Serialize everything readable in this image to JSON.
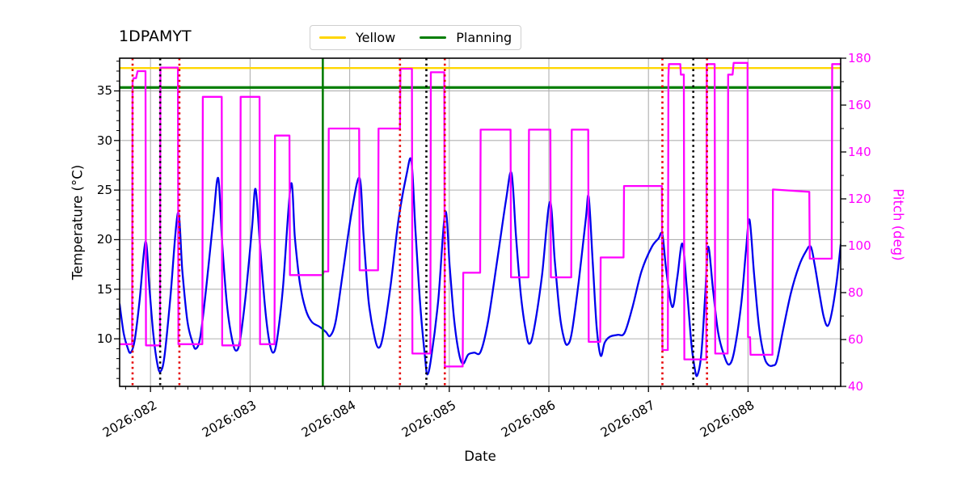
{
  "chart_data": {
    "type": "line",
    "title": "1DPAMYT",
    "xlabel": "Date",
    "ylabel_left": "Temperature (°C)",
    "ylabel_right": "Pitch (deg)",
    "grid": true,
    "xlim": [
      81.69,
      88.93
    ],
    "ylim_left": [
      5.2,
      38.3
    ],
    "ylim_right": [
      40,
      180
    ],
    "x_ticks": [
      {
        "day": 82,
        "label": "2026:082"
      },
      {
        "day": 83,
        "label": "2026:083"
      },
      {
        "day": 84,
        "label": "2026:084"
      },
      {
        "day": 85,
        "label": "2026:085"
      },
      {
        "day": 86,
        "label": "2026:086"
      },
      {
        "day": 87,
        "label": "2026:087"
      },
      {
        "day": 88,
        "label": "2026:088"
      }
    ],
    "x_minor_tick_step_days": 0.125,
    "y_ticks_left": [
      10,
      15,
      20,
      25,
      30,
      35
    ],
    "y_ticks_right": [
      40,
      60,
      80,
      100,
      120,
      140,
      160,
      180
    ],
    "legend": [
      {
        "label": "Yellow",
        "color": "#ffd600"
      },
      {
        "label": "Planning",
        "color": "#007d00"
      }
    ],
    "hlines": [
      {
        "name": "yellow-limit",
        "axis": "right",
        "value": 175.8,
        "color": "#ffd600",
        "width": 2.4
      },
      {
        "name": "planning-limit",
        "axis": "right",
        "value": 167.5,
        "color": "#007d00",
        "width": 3.2
      }
    ],
    "vlines": [
      {
        "day": 83.73,
        "color": "#007d00",
        "style": "solid",
        "width": 2.6
      },
      {
        "day": 81.82,
        "color": "#e60000",
        "style": "dotted",
        "width": 2.6
      },
      {
        "day": 82.29,
        "color": "#e60000",
        "style": "dotted",
        "width": 2.6
      },
      {
        "day": 84.505,
        "color": "#e60000",
        "style": "dotted",
        "width": 2.6
      },
      {
        "day": 84.955,
        "color": "#e60000",
        "style": "dotted",
        "width": 2.6
      },
      {
        "day": 87.14,
        "color": "#e60000",
        "style": "dotted",
        "width": 2.6
      },
      {
        "day": 87.588,
        "color": "#e60000",
        "style": "dotted",
        "width": 2.6
      },
      {
        "day": 82.097,
        "color": "#000000",
        "style": "dotted",
        "width": 2.6
      },
      {
        "day": 84.77,
        "color": "#000000",
        "style": "dotted",
        "width": 2.6
      },
      {
        "day": 87.45,
        "color": "#000000",
        "style": "dotted",
        "width": 2.6
      }
    ],
    "series": [
      {
        "name": "temperature",
        "axis": "left",
        "color": "#0000ee",
        "width": 2.3,
        "smooth": true,
        "points": [
          [
            81.69,
            13.5
          ],
          [
            81.73,
            10.6
          ],
          [
            81.77,
            9.1
          ],
          [
            81.8,
            8.6
          ],
          [
            81.84,
            9.8
          ],
          [
            81.89,
            13.8
          ],
          [
            81.95,
            19.8
          ],
          [
            81.99,
            15.0
          ],
          [
            82.03,
            10.3
          ],
          [
            82.07,
            7.4
          ],
          [
            82.1,
            6.7
          ],
          [
            82.14,
            8.2
          ],
          [
            82.2,
            14.2
          ],
          [
            82.275,
            22.7
          ],
          [
            82.32,
            16.8
          ],
          [
            82.37,
            11.8
          ],
          [
            82.42,
            9.7
          ],
          [
            82.455,
            9.0
          ],
          [
            82.5,
            10.2
          ],
          [
            82.56,
            15.2
          ],
          [
            82.63,
            22.0
          ],
          [
            82.68,
            26.2
          ],
          [
            82.72,
            19.6
          ],
          [
            82.77,
            13.2
          ],
          [
            82.82,
            9.9
          ],
          [
            82.86,
            8.8
          ],
          [
            82.9,
            9.9
          ],
          [
            82.96,
            14.8
          ],
          [
            83.02,
            21.3
          ],
          [
            83.055,
            25.1
          ],
          [
            83.1,
            19.4
          ],
          [
            83.15,
            13.2
          ],
          [
            83.19,
            9.9
          ],
          [
            83.23,
            8.6
          ],
          [
            83.27,
            9.9
          ],
          [
            83.33,
            15.2
          ],
          [
            83.41,
            25.6
          ],
          [
            83.45,
            20.2
          ],
          [
            83.5,
            15.6
          ],
          [
            83.56,
            12.9
          ],
          [
            83.62,
            11.7
          ],
          [
            83.7,
            11.2
          ],
          [
            83.76,
            10.7
          ],
          [
            83.805,
            10.3
          ],
          [
            83.86,
            11.8
          ],
          [
            83.93,
            16.6
          ],
          [
            84.02,
            22.8
          ],
          [
            84.1,
            26.2
          ],
          [
            84.14,
            20.3
          ],
          [
            84.19,
            13.8
          ],
          [
            84.245,
            10.4
          ],
          [
            84.29,
            9.1
          ],
          [
            84.335,
            10.3
          ],
          [
            84.41,
            15.3
          ],
          [
            84.49,
            22.0
          ],
          [
            84.57,
            26.5
          ],
          [
            84.62,
            27.9
          ],
          [
            84.66,
            21.0
          ],
          [
            84.71,
            13.2
          ],
          [
            84.755,
            8.3
          ],
          [
            84.78,
            6.4
          ],
          [
            84.82,
            8.2
          ],
          [
            84.89,
            14.0
          ],
          [
            84.96,
            22.8
          ],
          [
            85.005,
            17.2
          ],
          [
            85.05,
            11.8
          ],
          [
            85.1,
            8.4
          ],
          [
            85.14,
            7.5
          ],
          [
            85.19,
            8.4
          ],
          [
            85.25,
            8.6
          ],
          [
            85.315,
            8.7
          ],
          [
            85.39,
            11.8
          ],
          [
            85.48,
            17.8
          ],
          [
            85.57,
            24.0
          ],
          [
            85.625,
            26.7
          ],
          [
            85.67,
            20.3
          ],
          [
            85.72,
            14.3
          ],
          [
            85.77,
            10.7
          ],
          [
            85.805,
            9.5
          ],
          [
            85.85,
            10.9
          ],
          [
            85.93,
            16.3
          ],
          [
            86.01,
            23.8
          ],
          [
            86.06,
            17.8
          ],
          [
            86.11,
            12.4
          ],
          [
            86.15,
            10.1
          ],
          [
            86.185,
            9.4
          ],
          [
            86.23,
            10.6
          ],
          [
            86.3,
            15.8
          ],
          [
            86.37,
            22.0
          ],
          [
            86.4,
            24.3
          ],
          [
            86.44,
            17.8
          ],
          [
            86.48,
            11.2
          ],
          [
            86.52,
            8.3
          ],
          [
            86.56,
            9.6
          ],
          [
            86.61,
            10.2
          ],
          [
            86.69,
            10.4
          ],
          [
            86.76,
            10.6
          ],
          [
            86.84,
            13.2
          ],
          [
            86.93,
            16.8
          ],
          [
            87.03,
            19.2
          ],
          [
            87.1,
            20.1
          ],
          [
            87.14,
            20.5
          ],
          [
            87.18,
            16.8
          ],
          [
            87.24,
            13.2
          ],
          [
            87.29,
            16.2
          ],
          [
            87.34,
            19.6
          ],
          [
            87.385,
            15.2
          ],
          [
            87.43,
            9.6
          ],
          [
            87.465,
            7.0
          ],
          [
            87.49,
            6.3
          ],
          [
            87.53,
            8.4
          ],
          [
            87.57,
            14.4
          ],
          [
            87.6,
            19.3
          ],
          [
            87.65,
            14.8
          ],
          [
            87.7,
            10.6
          ],
          [
            87.76,
            8.3
          ],
          [
            87.81,
            7.4
          ],
          [
            87.86,
            8.7
          ],
          [
            87.93,
            13.4
          ],
          [
            87.98,
            19.0
          ],
          [
            88.015,
            22.0
          ],
          [
            88.06,
            16.6
          ],
          [
            88.11,
            11.2
          ],
          [
            88.16,
            8.3
          ],
          [
            88.2,
            7.4
          ],
          [
            88.25,
            7.3
          ],
          [
            88.29,
            7.8
          ],
          [
            88.35,
            10.8
          ],
          [
            88.43,
            14.6
          ],
          [
            88.51,
            17.3
          ],
          [
            88.58,
            18.8
          ],
          [
            88.63,
            19.3
          ],
          [
            88.67,
            17.4
          ],
          [
            88.72,
            14.4
          ],
          [
            88.76,
            12.2
          ],
          [
            88.8,
            11.3
          ],
          [
            88.84,
            12.6
          ],
          [
            88.89,
            15.8
          ],
          [
            88.93,
            19.5
          ]
        ]
      },
      {
        "name": "pitch",
        "axis": "right",
        "color": "#ff00ff",
        "width": 2.3,
        "smooth": false,
        "points": [
          [
            81.69,
            58
          ],
          [
            81.815,
            58
          ],
          [
            81.82,
            170
          ],
          [
            81.83,
            171.5
          ],
          [
            81.855,
            171.5
          ],
          [
            81.87,
            174.5
          ],
          [
            81.95,
            174.5
          ],
          [
            81.955,
            57.5
          ],
          [
            82.095,
            57.5
          ],
          [
            82.1,
            176
          ],
          [
            82.275,
            176
          ],
          [
            82.28,
            58
          ],
          [
            82.52,
            58
          ],
          [
            82.525,
            163.5
          ],
          [
            82.715,
            163.5
          ],
          [
            82.72,
            57.5
          ],
          [
            82.9,
            57.5
          ],
          [
            82.905,
            163.5
          ],
          [
            83.095,
            163.5
          ],
          [
            83.1,
            58
          ],
          [
            83.245,
            58
          ],
          [
            83.25,
            147
          ],
          [
            83.395,
            147
          ],
          [
            83.4,
            87.5
          ],
          [
            83.73,
            87.5
          ],
          [
            83.74,
            89
          ],
          [
            83.785,
            89
          ],
          [
            83.79,
            150
          ],
          [
            84.095,
            150
          ],
          [
            84.1,
            89.5
          ],
          [
            84.285,
            89.5
          ],
          [
            84.29,
            150
          ],
          [
            84.505,
            150
          ],
          [
            84.51,
            175.5
          ],
          [
            84.625,
            175.5
          ],
          [
            84.63,
            54
          ],
          [
            84.81,
            54
          ],
          [
            84.815,
            174
          ],
          [
            84.95,
            174
          ],
          [
            84.955,
            48.5
          ],
          [
            85.135,
            48.5
          ],
          [
            85.14,
            88.5
          ],
          [
            85.31,
            88.5
          ],
          [
            85.315,
            149.5
          ],
          [
            85.615,
            149.5
          ],
          [
            85.62,
            86.5
          ],
          [
            85.795,
            86.5
          ],
          [
            85.8,
            149.5
          ],
          [
            86.015,
            149.5
          ],
          [
            86.02,
            86.5
          ],
          [
            86.225,
            86.5
          ],
          [
            86.23,
            149.5
          ],
          [
            86.395,
            149.5
          ],
          [
            86.4,
            59
          ],
          [
            86.515,
            59
          ],
          [
            86.52,
            95
          ],
          [
            86.75,
            95
          ],
          [
            86.755,
            125.5
          ],
          [
            87.135,
            125.5
          ],
          [
            87.14,
            55.5
          ],
          [
            87.195,
            55.5
          ],
          [
            87.2,
            172
          ],
          [
            87.205,
            177.5
          ],
          [
            87.32,
            177.5
          ],
          [
            87.325,
            173
          ],
          [
            87.355,
            173
          ],
          [
            87.36,
            51.5
          ],
          [
            87.58,
            51.5
          ],
          [
            87.585,
            177.5
          ],
          [
            87.665,
            177.5
          ],
          [
            87.67,
            54
          ],
          [
            87.795,
            54
          ],
          [
            87.8,
            173
          ],
          [
            87.845,
            173
          ],
          [
            87.855,
            178
          ],
          [
            87.995,
            178
          ],
          [
            88.0,
            61
          ],
          [
            88.02,
            61
          ],
          [
            88.025,
            53.5
          ],
          [
            88.245,
            53.5
          ],
          [
            88.25,
            124
          ],
          [
            88.615,
            123
          ],
          [
            88.62,
            94.5
          ],
          [
            88.84,
            94.5
          ],
          [
            88.845,
            177.5
          ],
          [
            88.93,
            177.5
          ]
        ]
      }
    ]
  }
}
